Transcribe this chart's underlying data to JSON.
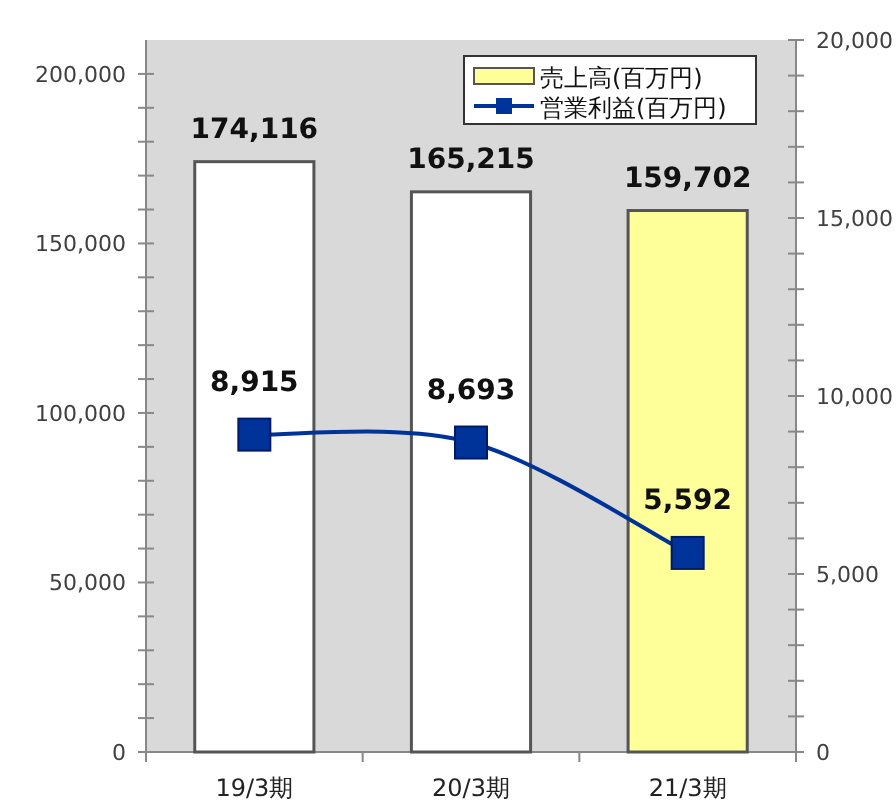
{
  "chart_data": {
    "type": "bar",
    "categories": [
      "19/3期",
      "20/3期",
      "21/3期"
    ],
    "series": [
      {
        "name": "売上高(百万円)",
        "color": "#ffff99",
        "colors": [
          "#ffffff",
          "#ffffff",
          "#ffff99"
        ],
        "values": [
          174116,
          165215,
          159702
        ],
        "value_labels": [
          "174,116",
          "165,215",
          "159,702"
        ]
      },
      {
        "name": "営業利益(百万円)",
        "type": "line",
        "axis": "y2",
        "color": "#003399",
        "values": [
          8915,
          8693,
          5592
        ],
        "value_labels": [
          "8,915",
          "8,693",
          "5,592"
        ]
      }
    ],
    "ylim": [
      0,
      210000
    ],
    "yticks": [
      0,
      {
        "value": 10000,
        "label": null
      },
      {
        "value": 20000,
        "label": null
      },
      {
        "value": 30000,
        "label": null
      },
      {
        "value": 40000,
        "label": null
      },
      {
        "value": 50000,
        "label": "50,000"
      },
      {
        "value": 60000,
        "label": null
      },
      {
        "value": 70000,
        "label": null
      },
      {
        "value": 80000,
        "label": null
      },
      {
        "value": 90000,
        "label": null
      },
      {
        "value": 100000,
        "label": "100,000"
      },
      {
        "value": 110000,
        "label": null
      },
      {
        "value": 120000,
        "label": null
      },
      {
        "value": 130000,
        "label": null
      },
      {
        "value": 140000,
        "label": null
      },
      {
        "value": 150000,
        "label": "150,000"
      },
      {
        "value": 160000,
        "label": null
      },
      {
        "value": 170000,
        "label": null
      },
      {
        "value": 180000,
        "label": null
      },
      {
        "value": 190000,
        "label": null
      },
      {
        "value": 200000,
        "label": "200,000"
      }
    ],
    "y2lim": [
      0,
      20000
    ],
    "y2ticks": [
      0,
      {
        "value": 1000,
        "label": null
      },
      {
        "value": 2000,
        "label": null
      },
      {
        "value": 3000,
        "label": null
      },
      {
        "value": 4000,
        "label": null
      },
      {
        "value": 5000,
        "label": "5,000"
      },
      {
        "value": 6000,
        "label": null
      },
      {
        "value": 7000,
        "label": null
      },
      {
        "value": 8000,
        "label": null
      },
      {
        "value": 9000,
        "label": null
      },
      {
        "value": 10000,
        "label": "10,000"
      },
      {
        "value": 11000,
        "label": null
      },
      {
        "value": 12000,
        "label": null
      },
      {
        "value": 13000,
        "label": null
      },
      {
        "value": 14000,
        "label": null
      },
      {
        "value": 15000,
        "label": "15,000"
      },
      {
        "value": 16000,
        "label": null
      },
      {
        "value": 17000,
        "label": null
      },
      {
        "value": 18000,
        "label": null
      },
      {
        "value": 19000,
        "label": null
      },
      {
        "value": 20000,
        "label": "20,000"
      }
    ],
    "marker": "square",
    "line_style": "solid",
    "grid": false,
    "legend": "top right"
  }
}
